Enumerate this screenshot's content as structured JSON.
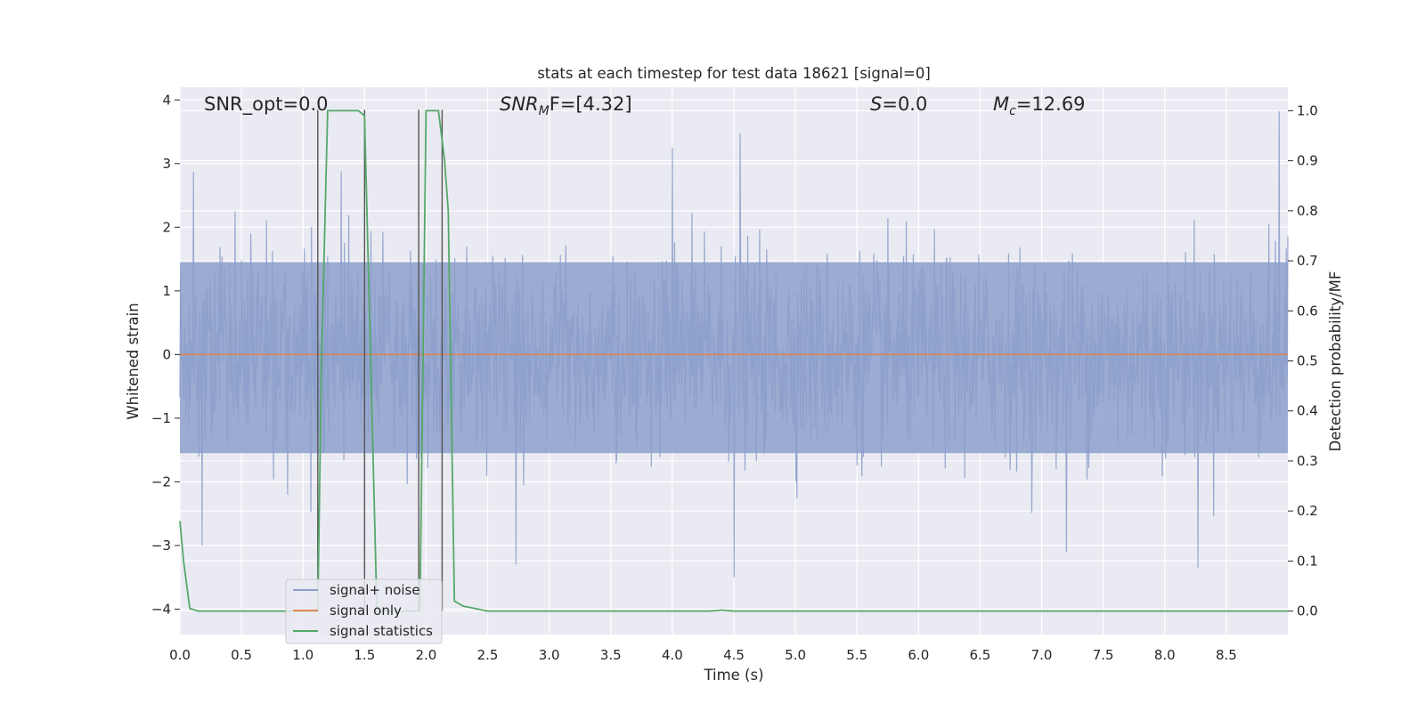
{
  "chart_data": {
    "type": "line",
    "title": "stats at each timestep for test data 18621 [signal=0]",
    "xlabel": "Time (s)",
    "ylabel_left": "Whitened strain",
    "ylabel_right": "Detection probability/MF",
    "xlim": [
      0.0,
      9.0
    ],
    "ylim_left": [
      -4.4,
      4.2
    ],
    "ylim_right": [
      -0.047,
      1.047
    ],
    "x_ticks": [
      "0.0",
      "0.5",
      "1.0",
      "1.5",
      "2.0",
      "2.5",
      "3.0",
      "3.5",
      "4.0",
      "4.5",
      "5.0",
      "5.5",
      "6.0",
      "6.5",
      "7.0",
      "7.5",
      "8.0",
      "8.5"
    ],
    "y_ticks_left": [
      "4",
      "3",
      "2",
      "1",
      "0",
      "−1",
      "−2",
      "−3",
      "−4"
    ],
    "y_ticks_right": [
      "1.0",
      "0.9",
      "0.8",
      "0.7",
      "0.6",
      "0.5",
      "0.4",
      "0.3",
      "0.2",
      "0.1",
      "0.0"
    ],
    "grid": true,
    "legend_placement": "lower-left",
    "annotations": {
      "snr_opt": "SNR_opt=0.0",
      "snr_mf_sym": "SNR",
      "snr_mf_sub": "M",
      "snr_mf_rest": "F=[4.32]",
      "s_sym": "S",
      "s_rest": "=0.0",
      "mc_sym": "M",
      "mc_sub": "c",
      "mc_rest": "=12.69"
    },
    "series": [
      {
        "name": "signal+ noise",
        "color": "#8da0cb",
        "description_axis": "left",
        "noise_sigma": 1.0,
        "n_samples": 2048,
        "peaks": [
          [
            0.11,
            2.87
          ],
          [
            0.18,
            -3.0
          ],
          [
            1.31,
            2.88
          ],
          [
            2.73,
            -3.3
          ],
          [
            4.0,
            3.25
          ],
          [
            4.55,
            3.48
          ],
          [
            4.5,
            -3.5
          ],
          [
            7.2,
            -3.1
          ],
          [
            8.27,
            -3.35
          ],
          [
            8.93,
            3.82
          ]
        ]
      },
      {
        "name": "signal only",
        "color": "#dd8452",
        "description_axis": "left",
        "x": [
          0.0,
          9.0
        ],
        "y": [
          0.0,
          0.0
        ]
      },
      {
        "name": "signal statistics",
        "color": "#55a868",
        "description_axis": "right",
        "x": [
          0.0,
          0.03,
          0.08,
          0.15,
          1.1,
          1.12,
          1.15,
          1.2,
          1.45,
          1.5,
          1.55,
          1.6,
          1.9,
          1.95,
          2.0,
          2.1,
          2.15,
          2.18,
          2.23,
          2.3,
          2.4,
          2.5,
          3.0,
          4.3,
          4.4,
          4.5,
          9.0
        ],
        "y": [
          0.18,
          0.1,
          0.005,
          0.0,
          0.0,
          0.0,
          0.5,
          1.0,
          1.0,
          0.99,
          0.5,
          0.0,
          0.0,
          0.0,
          1.0,
          1.0,
          0.9,
          0.8,
          0.02,
          0.01,
          0.005,
          0.0,
          0.0,
          0.0,
          0.002,
          0.0,
          0.0
        ]
      }
    ],
    "vertical_lines": [
      1.12,
      1.5,
      1.94,
      2.13
    ]
  }
}
